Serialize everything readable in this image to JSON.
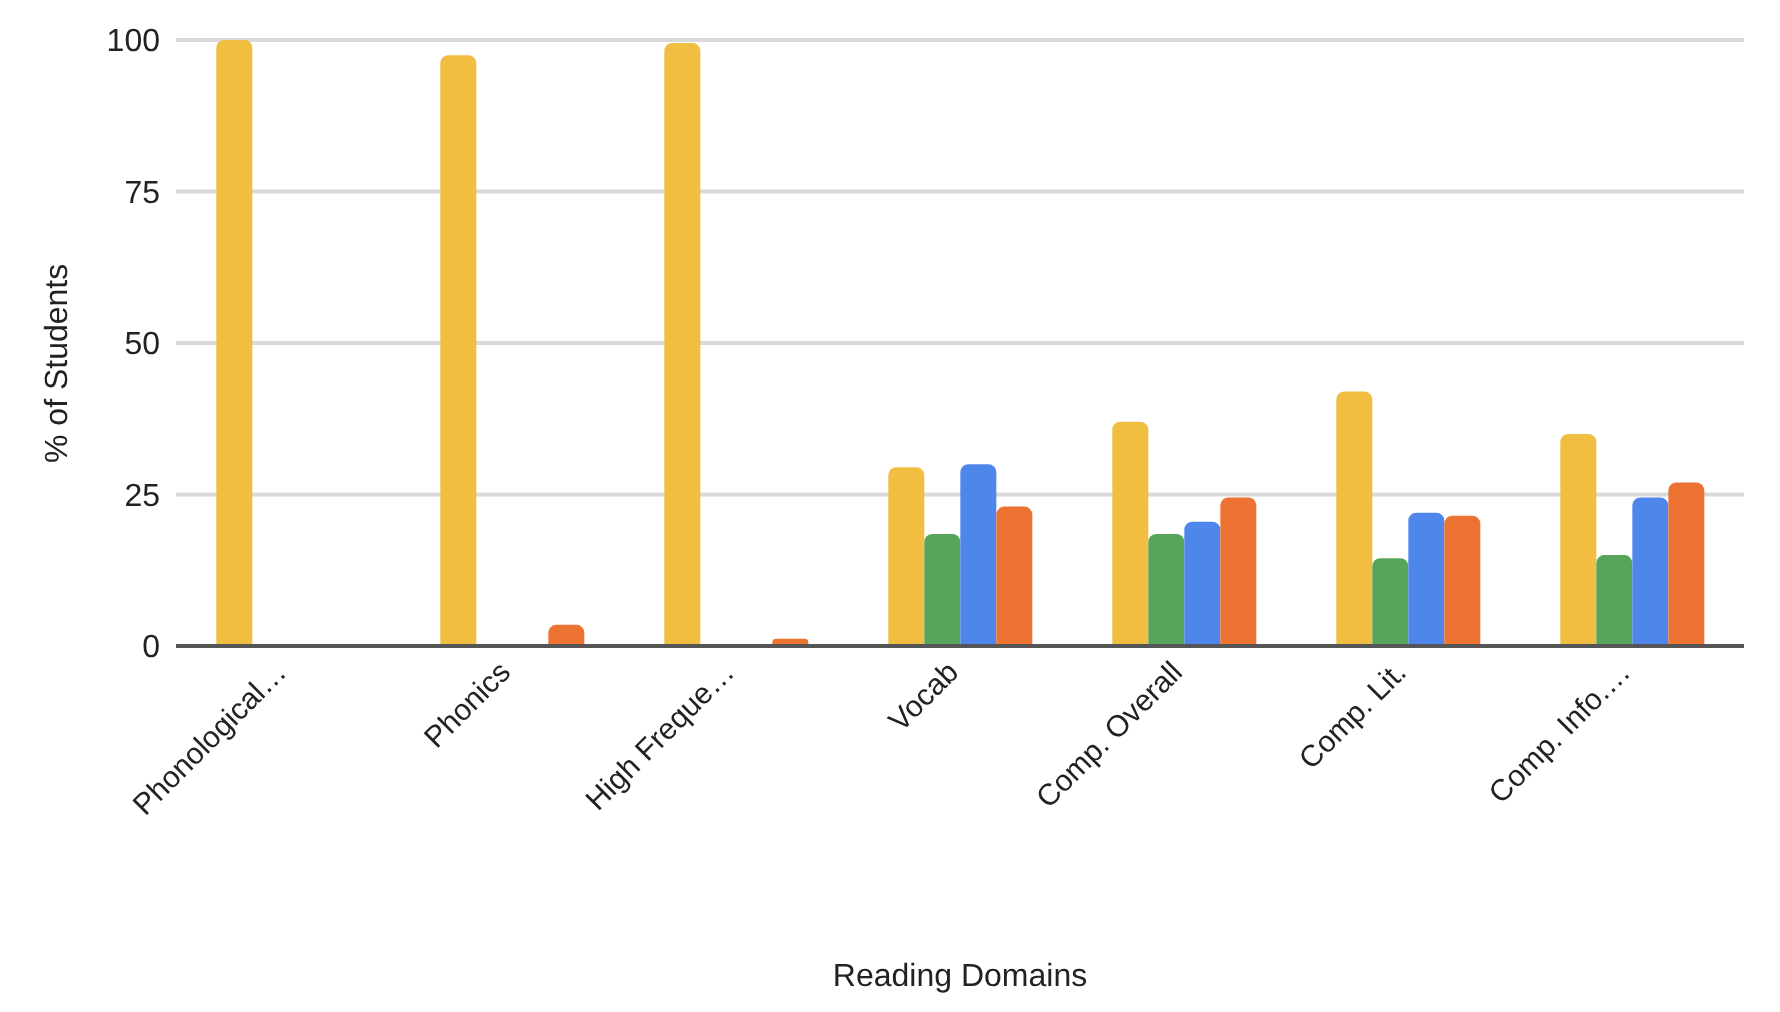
{
  "chart_data": {
    "type": "bar",
    "xlabel": "Reading Domains",
    "ylabel": "% of Students",
    "categories": [
      "Phonological…",
      "Phonics",
      "High Freque…",
      "Vocab",
      "Comp. Overall",
      "Comp. Lit.",
      "Comp. Info.…"
    ],
    "series": [
      {
        "color": "#f1be42",
        "values": [
          100,
          97.5,
          99.5,
          29.5,
          37,
          42,
          35
        ]
      },
      {
        "color": "#57a55a",
        "values": [
          0,
          0,
          0,
          18.5,
          18.5,
          14.5,
          15
        ]
      },
      {
        "color": "#4f86ec",
        "values": [
          0,
          0,
          0,
          30,
          20.5,
          22,
          24.5
        ]
      },
      {
        "color": "#ec7331",
        "values": [
          0,
          3.5,
          1.2,
          23,
          24.5,
          21.5,
          27
        ]
      }
    ],
    "ylim": [
      0,
      100
    ],
    "yticks": [
      0,
      25,
      50,
      75,
      100
    ],
    "grid": "y",
    "legend": false
  }
}
